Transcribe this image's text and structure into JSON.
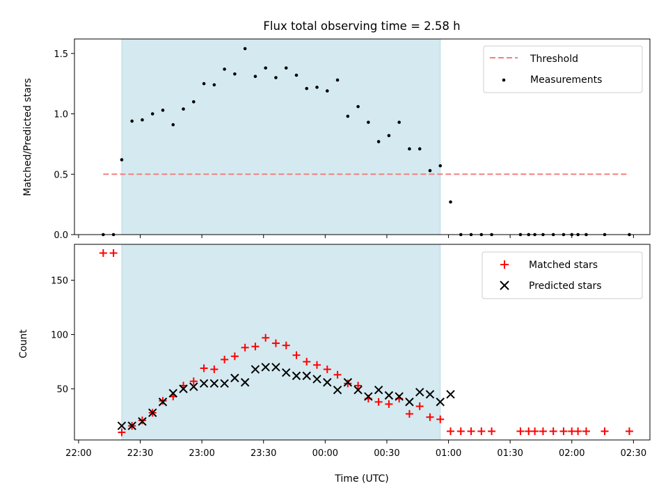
{
  "chart_data": [
    {
      "type": "scatter",
      "title": "Flux total observing time = 2.58 h",
      "xlabel": "",
      "ylabel": "Matched/Predicted stars",
      "xlim": [
        "21:58",
        "02:38"
      ],
      "ylim": [
        0,
        1.62
      ],
      "yticks": [
        0.0,
        0.5,
        1.0,
        1.5
      ],
      "ytick_labels": [
        "0.0",
        "0.5",
        "1.0",
        "1.5"
      ],
      "grid": false,
      "legend_position": "top-right",
      "shaded_interval": {
        "start": "22:21",
        "end": "00:56",
        "color": "#d4eaf0"
      },
      "threshold": {
        "name": "Threshold",
        "value": 0.5,
        "x_start": "22:12",
        "x_end": "02:28",
        "color": "#f08080"
      },
      "series": [
        {
          "name": "Measurements",
          "marker": "dot",
          "color": "#000000",
          "x": [
            "22:12",
            "22:17",
            "22:21",
            "22:26",
            "22:31",
            "22:36",
            "22:41",
            "22:46",
            "22:51",
            "22:56",
            "23:01",
            "23:06",
            "23:11",
            "23:16",
            "23:21",
            "23:26",
            "23:31",
            "23:36",
            "23:41",
            "23:46",
            "23:51",
            "23:56",
            "00:01",
            "00:06",
            "00:11",
            "00:16",
            "00:21",
            "00:26",
            "00:31",
            "00:36",
            "00:41",
            "00:46",
            "00:51",
            "00:56",
            "01:01",
            "01:06",
            "01:11",
            "01:16",
            "01:21",
            "01:35",
            "01:39",
            "01:42",
            "01:46",
            "01:51",
            "01:56",
            "02:00",
            "02:03",
            "02:07",
            "02:16",
            "02:28"
          ],
          "y": [
            0,
            0,
            0.62,
            0.94,
            0.95,
            1.0,
            1.03,
            0.91,
            1.04,
            1.1,
            1.25,
            1.24,
            1.37,
            1.33,
            1.54,
            1.31,
            1.38,
            1.3,
            1.38,
            1.32,
            1.21,
            1.22,
            1.19,
            1.28,
            0.98,
            1.06,
            0.93,
            0.77,
            0.82,
            0.93,
            0.71,
            0.71,
            0.53,
            0.57,
            0.27,
            0,
            0,
            0,
            0,
            0,
            0,
            0,
            0,
            0,
            0,
            0,
            0,
            0,
            0,
            0
          ]
        }
      ]
    },
    {
      "type": "scatter",
      "title": "",
      "xlabel": "Time (UTC)",
      "ylabel": "Count",
      "xlim": [
        "21:58",
        "02:38"
      ],
      "xticks": [
        "22:00",
        "22:30",
        "23:00",
        "23:30",
        "00:00",
        "00:30",
        "01:00",
        "01:30",
        "02:00",
        "02:30"
      ],
      "ylim": [
        3,
        183
      ],
      "yticks": [
        50,
        100,
        150
      ],
      "grid": false,
      "legend_position": "top-right",
      "shaded_interval": {
        "start": "22:21",
        "end": "00:56",
        "color": "#d4eaf0"
      },
      "series": [
        {
          "name": "Matched stars",
          "marker": "plus",
          "color": "#ff0000",
          "x": [
            "22:12",
            "22:17",
            "22:21",
            "22:26",
            "22:31",
            "22:36",
            "22:41",
            "22:46",
            "22:51",
            "22:56",
            "23:01",
            "23:06",
            "23:11",
            "23:16",
            "23:21",
            "23:26",
            "23:31",
            "23:36",
            "23:41",
            "23:46",
            "23:51",
            "23:56",
            "00:01",
            "00:06",
            "00:11",
            "00:16",
            "00:21",
            "00:26",
            "00:31",
            "00:36",
            "00:41",
            "00:46",
            "00:51",
            "00:56",
            "01:01",
            "01:06",
            "01:11",
            "01:16",
            "01:21",
            "01:35",
            "01:39",
            "01:42",
            "01:46",
            "01:51",
            "01:56",
            "02:00",
            "02:03",
            "02:07",
            "02:16",
            "02:28"
          ],
          "y": [
            175,
            175,
            10,
            16,
            21,
            28,
            39,
            43,
            53,
            57,
            69,
            68,
            77,
            80,
            88,
            89,
            97,
            92,
            90,
            81,
            75,
            72,
            68,
            63,
            55,
            53,
            41,
            38,
            36,
            41,
            27,
            34,
            24,
            22,
            11,
            11,
            11,
            11,
            11,
            11,
            11,
            11,
            11,
            11,
            11,
            11,
            11,
            11,
            11,
            11
          ]
        },
        {
          "name": "Predicted stars",
          "marker": "x",
          "color": "#000000",
          "x": [
            "22:21",
            "22:26",
            "22:31",
            "22:36",
            "22:41",
            "22:46",
            "22:51",
            "22:56",
            "23:01",
            "23:06",
            "23:11",
            "23:16",
            "23:21",
            "23:26",
            "23:31",
            "23:36",
            "23:41",
            "23:46",
            "23:51",
            "23:56",
            "00:01",
            "00:06",
            "00:11",
            "00:16",
            "00:21",
            "00:26",
            "00:31",
            "00:36",
            "00:41",
            "00:46",
            "00:51",
            "00:56",
            "01:01"
          ],
          "y": [
            16,
            16,
            20,
            28,
            38,
            46,
            50,
            52,
            55,
            55,
            55,
            60,
            56,
            68,
            70,
            70,
            65,
            62,
            62,
            59,
            56,
            49,
            56,
            49,
            43,
            49,
            44,
            43,
            38,
            47,
            45,
            38,
            45
          ]
        }
      ]
    }
  ]
}
